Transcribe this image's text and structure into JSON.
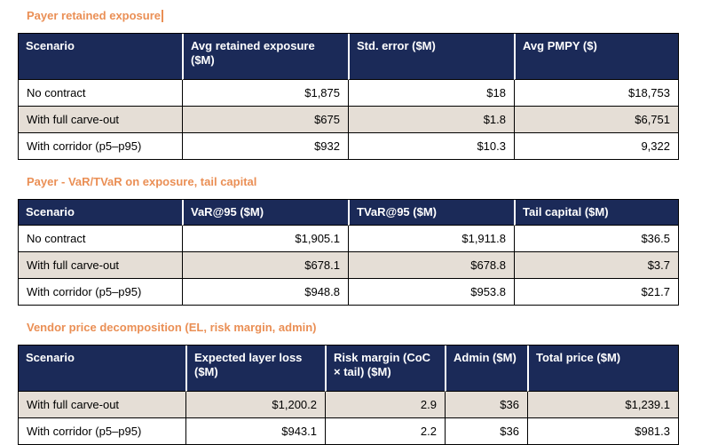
{
  "colors": {
    "header_bg": "#1b2a58",
    "header_text": "#ffffff",
    "alt_row_bg": "#e5ded6",
    "title_color": "#ea8f55",
    "border": "#000000"
  },
  "sections": [
    {
      "title": "Payer retained exposure",
      "cursor": true,
      "table": {
        "columns": [
          "Scenario",
          "Avg retained exposure ($M)",
          "Std. error ($M)",
          "Avg PMPY ($)"
        ],
        "rows": [
          {
            "highlight": false,
            "cells": [
              "No contract",
              "$1,875",
              "$18",
              "$18,753"
            ]
          },
          {
            "highlight": true,
            "cells": [
              "With full carve-out",
              "$675",
              "$1.8",
              "$6,751"
            ]
          },
          {
            "highlight": false,
            "cells": [
              "With corridor (p5–p95)",
              "$932",
              "$10.3",
              "9,322"
            ]
          }
        ]
      }
    },
    {
      "title": "Payer - VaR/TVaR on exposure, tail capital",
      "cursor": false,
      "table": {
        "columns": [
          "Scenario",
          "VaR@95 ($M)",
          "TVaR@95 ($M)",
          "Tail capital ($M)"
        ],
        "rows": [
          {
            "highlight": false,
            "cells": [
              "No contract",
              "$1,905.1",
              "$1,911.8",
              "$36.5"
            ]
          },
          {
            "highlight": true,
            "cells": [
              "With full carve-out",
              "$678.1",
              "$678.8",
              "$3.7"
            ]
          },
          {
            "highlight": false,
            "cells": [
              "With corridor (p5–p95)",
              "$948.8",
              "$953.8",
              "$21.7"
            ]
          }
        ]
      }
    },
    {
      "title": "Vendor price decomposition (EL, risk margin, admin)",
      "cursor": false,
      "table": {
        "columns": [
          "Scenario",
          "Expected layer loss ($M)",
          "Risk margin (CoC × tail) ($M)",
          "Admin ($M)",
          "Total price ($M)"
        ],
        "rows": [
          {
            "highlight": true,
            "cells": [
              "With full carve-out",
              "$1,200.2",
              "2.9",
              "$36",
              "$1,239.1"
            ]
          },
          {
            "highlight": false,
            "cells": [
              "With corridor (p5–p95)",
              "$943.1",
              "2.2",
              "$36",
              "$981.3"
            ]
          }
        ]
      }
    }
  ]
}
